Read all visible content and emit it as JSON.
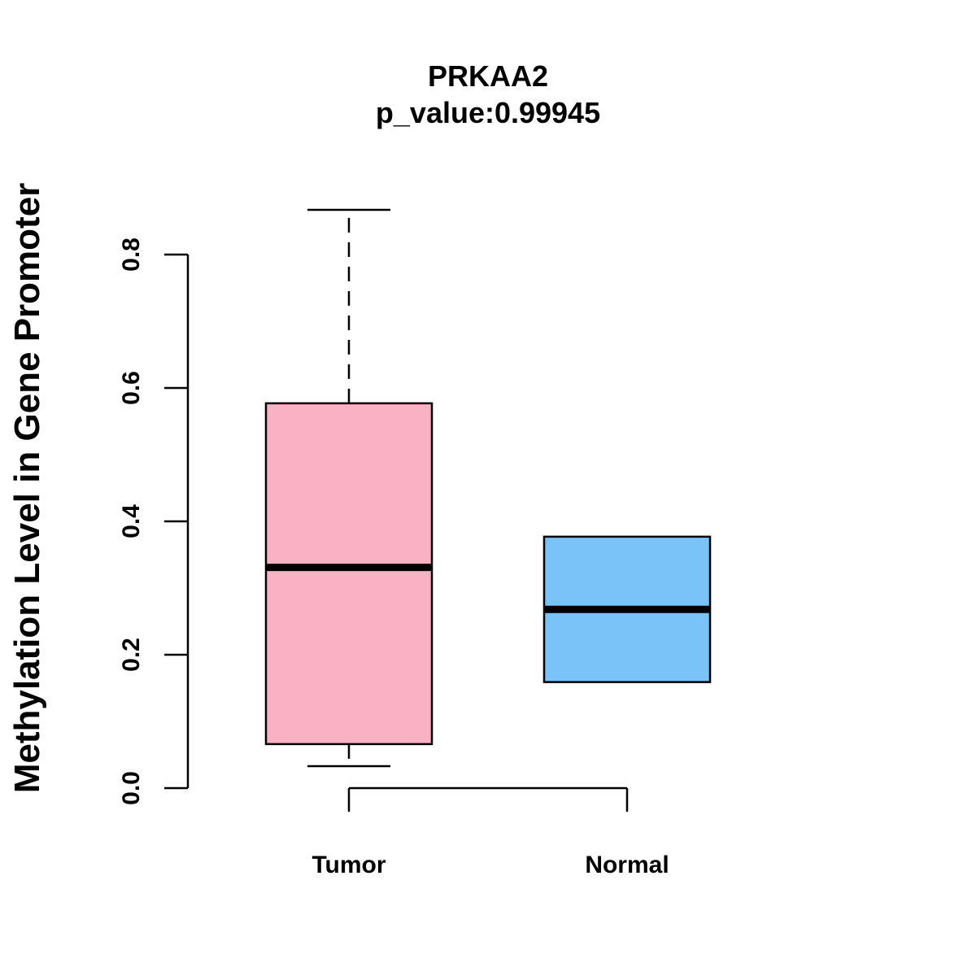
{
  "chart_data": {
    "type": "boxplot",
    "title": "PRKAA2",
    "subtitle": "p_value:0.99945",
    "xlabel": "",
    "ylabel": "Methylation Level in Gene Promoter",
    "ylim": [
      0.0,
      0.8
    ],
    "yticks": [
      "0.0",
      "0.2",
      "0.4",
      "0.6",
      "0.8"
    ],
    "categories": [
      "Tumor",
      "Normal"
    ],
    "boxes": [
      {
        "category": "Tumor",
        "whisker_low": 0.033,
        "q1": 0.066,
        "median": 0.331,
        "q3": 0.577,
        "whisker_high": 0.867,
        "color": "#FBB1C4"
      },
      {
        "category": "Normal",
        "whisker_low": 0.159,
        "q1": 0.159,
        "median": 0.268,
        "q3": 0.377,
        "whisker_high": 0.377,
        "color": "#7AC3F8"
      }
    ],
    "grid": false,
    "legend": "none"
  }
}
